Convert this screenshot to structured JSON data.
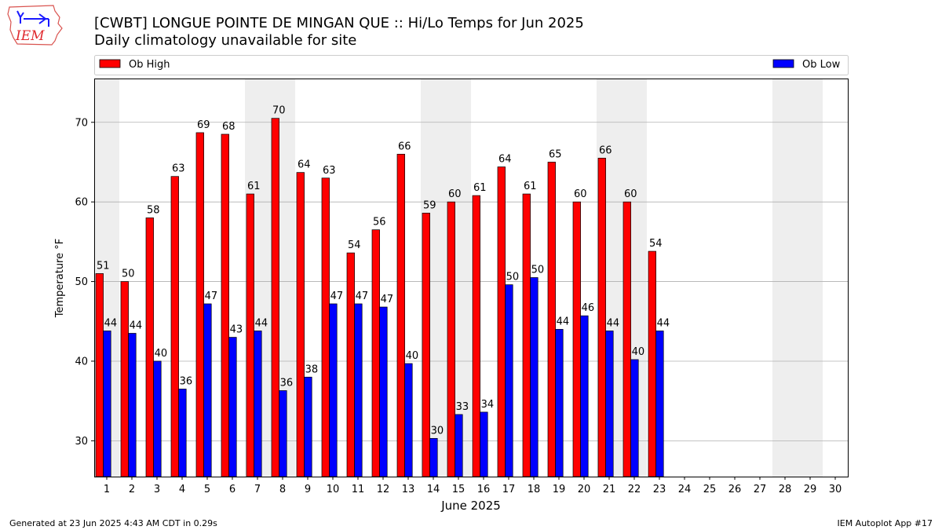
{
  "header": {
    "title": "[CWBT] LONGUE POINTE DE MINGAN QUE :: Hi/Lo Temps for Jun 2025",
    "subtitle": "Daily climatology unavailable for site",
    "logo_text": "IEM"
  },
  "footer": {
    "left": "Generated at 23 Jun 2025 4:43 AM CDT in 0.29s",
    "right": "IEM Autoplot App #17"
  },
  "colors": {
    "high": "#ff0000",
    "low": "#0000ff",
    "weekend_band": "#eeeeee",
    "grid": "#b0b0b0",
    "logo_text": "#e0292e",
    "logo_outline": "#d9534f",
    "logo_icon": "#1a1aff"
  },
  "chart_data": {
    "type": "bar",
    "xlabel": "June 2025",
    "ylabel": "Temperature °F",
    "ylim": [
      25.5,
      75.5
    ],
    "yticks": [
      30,
      40,
      50,
      60,
      70
    ],
    "grid": true,
    "legend": "top",
    "categories": [
      "1",
      "2",
      "3",
      "4",
      "5",
      "6",
      "7",
      "8",
      "9",
      "10",
      "11",
      "12",
      "13",
      "14",
      "15",
      "16",
      "17",
      "18",
      "19",
      "20",
      "21",
      "22",
      "23",
      "24",
      "25",
      "26",
      "27",
      "28",
      "29",
      "30"
    ],
    "weekend_days": [
      1,
      7,
      8,
      14,
      15,
      21,
      22,
      28,
      29
    ],
    "series": [
      {
        "name": "Ob High",
        "values": [
          51.0,
          50.0,
          58.0,
          63.2,
          68.7,
          68.5,
          61.0,
          70.5,
          63.7,
          63.0,
          53.6,
          56.5,
          66.0,
          58.6,
          60.0,
          60.8,
          64.4,
          61.0,
          65.0,
          60.0,
          65.5,
          60.0,
          53.8,
          null,
          null,
          null,
          null,
          null,
          null,
          null
        ],
        "labels": [
          "51",
          "50",
          "58",
          "63",
          "69",
          "68",
          "61",
          "70",
          "64",
          "63",
          "54",
          "56",
          "66",
          "59",
          "60",
          "61",
          "64",
          "61",
          "65",
          "60",
          "66",
          "60",
          "54",
          "",
          "",
          "",
          "",
          "",
          "",
          ""
        ]
      },
      {
        "name": "Ob Low",
        "values": [
          43.8,
          43.5,
          40.0,
          36.5,
          47.2,
          43.0,
          43.8,
          36.3,
          38.0,
          47.2,
          47.2,
          46.8,
          39.7,
          30.3,
          33.3,
          33.6,
          49.6,
          50.5,
          44.0,
          45.7,
          43.8,
          40.2,
          43.8,
          null,
          null,
          null,
          null,
          null,
          null,
          null
        ],
        "labels": [
          "44",
          "44",
          "40",
          "36",
          "47",
          "43",
          "44",
          "36",
          "38",
          "47",
          "47",
          "47",
          "40",
          "30",
          "33",
          "34",
          "50",
          "50",
          "44",
          "46",
          "44",
          "40",
          "44",
          "",
          "",
          "",
          "",
          "",
          "",
          ""
        ]
      }
    ]
  }
}
